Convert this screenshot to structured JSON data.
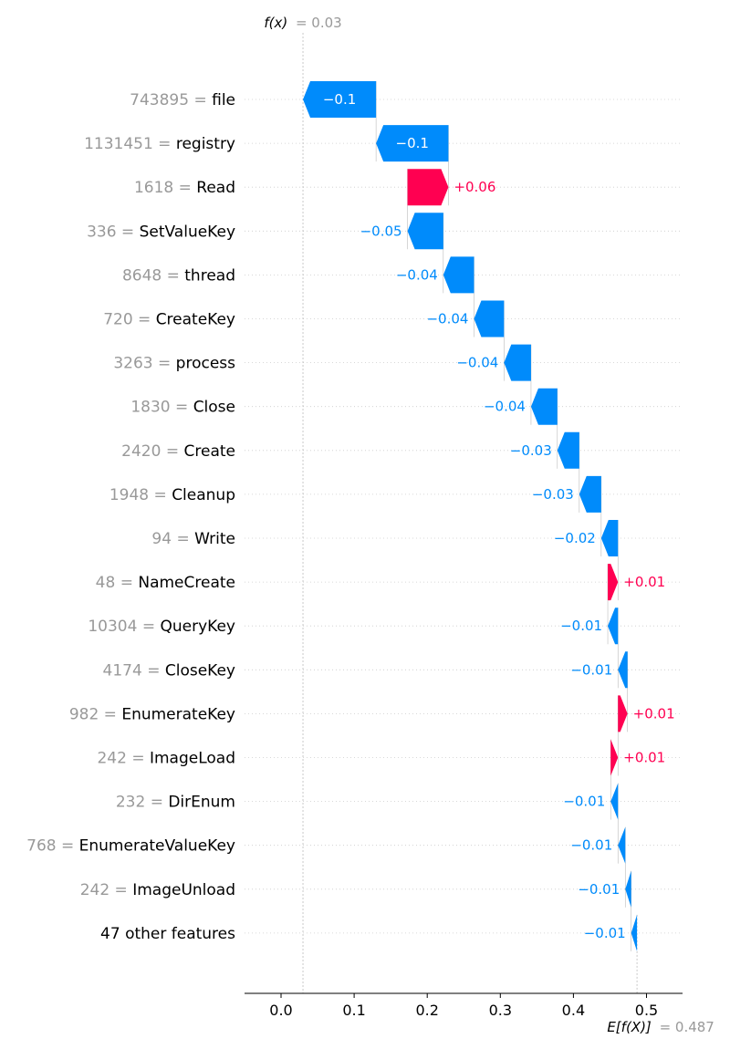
{
  "chart_data": {
    "type": "waterfall",
    "fx_label": "f(x)",
    "fx_value": "= 0.03",
    "base_label": "E[f(X)]",
    "base_value": "= 0.487",
    "fx": 0.03,
    "base": 0.487,
    "xlim": [
      -0.05,
      0.55
    ],
    "xticks": [
      0.0,
      0.1,
      0.2,
      0.3,
      0.4,
      0.5
    ],
    "xtick_labels": [
      "0.0",
      "0.1",
      "0.2",
      "0.3",
      "0.4",
      "0.5"
    ],
    "colors": {
      "positive": "#ff0051",
      "negative": "#008bfb",
      "muted": "#999999",
      "text": "#000000"
    },
    "features": [
      {
        "value": "743895",
        "name": "file",
        "shap": -0.1,
        "label": "−0.1",
        "start": 0.13,
        "end": 0.03
      },
      {
        "value": "1131451",
        "name": "registry",
        "shap": -0.1,
        "label": "−0.1",
        "start": 0.229,
        "end": 0.13
      },
      {
        "value": "1618",
        "name": "Read",
        "shap": 0.06,
        "label": "+0.06",
        "start": 0.173,
        "end": 0.229
      },
      {
        "value": "336",
        "name": "SetValueKey",
        "shap": -0.05,
        "label": "−0.05",
        "start": 0.222,
        "end": 0.173
      },
      {
        "value": "8648",
        "name": "thread",
        "shap": -0.04,
        "label": "−0.04",
        "start": 0.264,
        "end": 0.222
      },
      {
        "value": "720",
        "name": "CreateKey",
        "shap": -0.04,
        "label": "−0.04",
        "start": 0.305,
        "end": 0.264
      },
      {
        "value": "3263",
        "name": "process",
        "shap": -0.04,
        "label": "−0.04",
        "start": 0.342,
        "end": 0.305
      },
      {
        "value": "1830",
        "name": "Close",
        "shap": -0.04,
        "label": "−0.04",
        "start": 0.378,
        "end": 0.342
      },
      {
        "value": "2420",
        "name": "Create",
        "shap": -0.03,
        "label": "−0.03",
        "start": 0.408,
        "end": 0.378
      },
      {
        "value": "1948",
        "name": "Cleanup",
        "shap": -0.03,
        "label": "−0.03",
        "start": 0.438,
        "end": 0.408
      },
      {
        "value": "94",
        "name": "Write",
        "shap": -0.02,
        "label": "−0.02",
        "start": 0.461,
        "end": 0.438
      },
      {
        "value": "48",
        "name": "NameCreate",
        "shap": 0.01,
        "label": "+0.01",
        "start": 0.447,
        "end": 0.461
      },
      {
        "value": "10304",
        "name": "QueryKey",
        "shap": -0.01,
        "label": "−0.01",
        "start": 0.461,
        "end": 0.447
      },
      {
        "value": "4174",
        "name": "CloseKey",
        "shap": -0.01,
        "label": "−0.01",
        "start": 0.474,
        "end": 0.461
      },
      {
        "value": "982",
        "name": "EnumerateKey",
        "shap": 0.01,
        "label": "+0.01",
        "start": 0.461,
        "end": 0.474
      },
      {
        "value": "242",
        "name": "ImageLoad",
        "shap": 0.01,
        "label": "+0.01",
        "start": 0.451,
        "end": 0.461
      },
      {
        "value": "232",
        "name": "DirEnum",
        "shap": -0.01,
        "label": "−0.01",
        "start": 0.461,
        "end": 0.451
      },
      {
        "value": "768",
        "name": "EnumerateValueKey",
        "shap": -0.01,
        "label": "−0.01",
        "start": 0.471,
        "end": 0.461
      },
      {
        "value": "242",
        "name": "ImageUnload",
        "shap": -0.01,
        "label": "−0.01",
        "start": 0.479,
        "end": 0.471
      },
      {
        "value": "",
        "name": "47 other features",
        "shap": -0.01,
        "label": "−0.01",
        "start": 0.487,
        "end": 0.479
      }
    ]
  }
}
